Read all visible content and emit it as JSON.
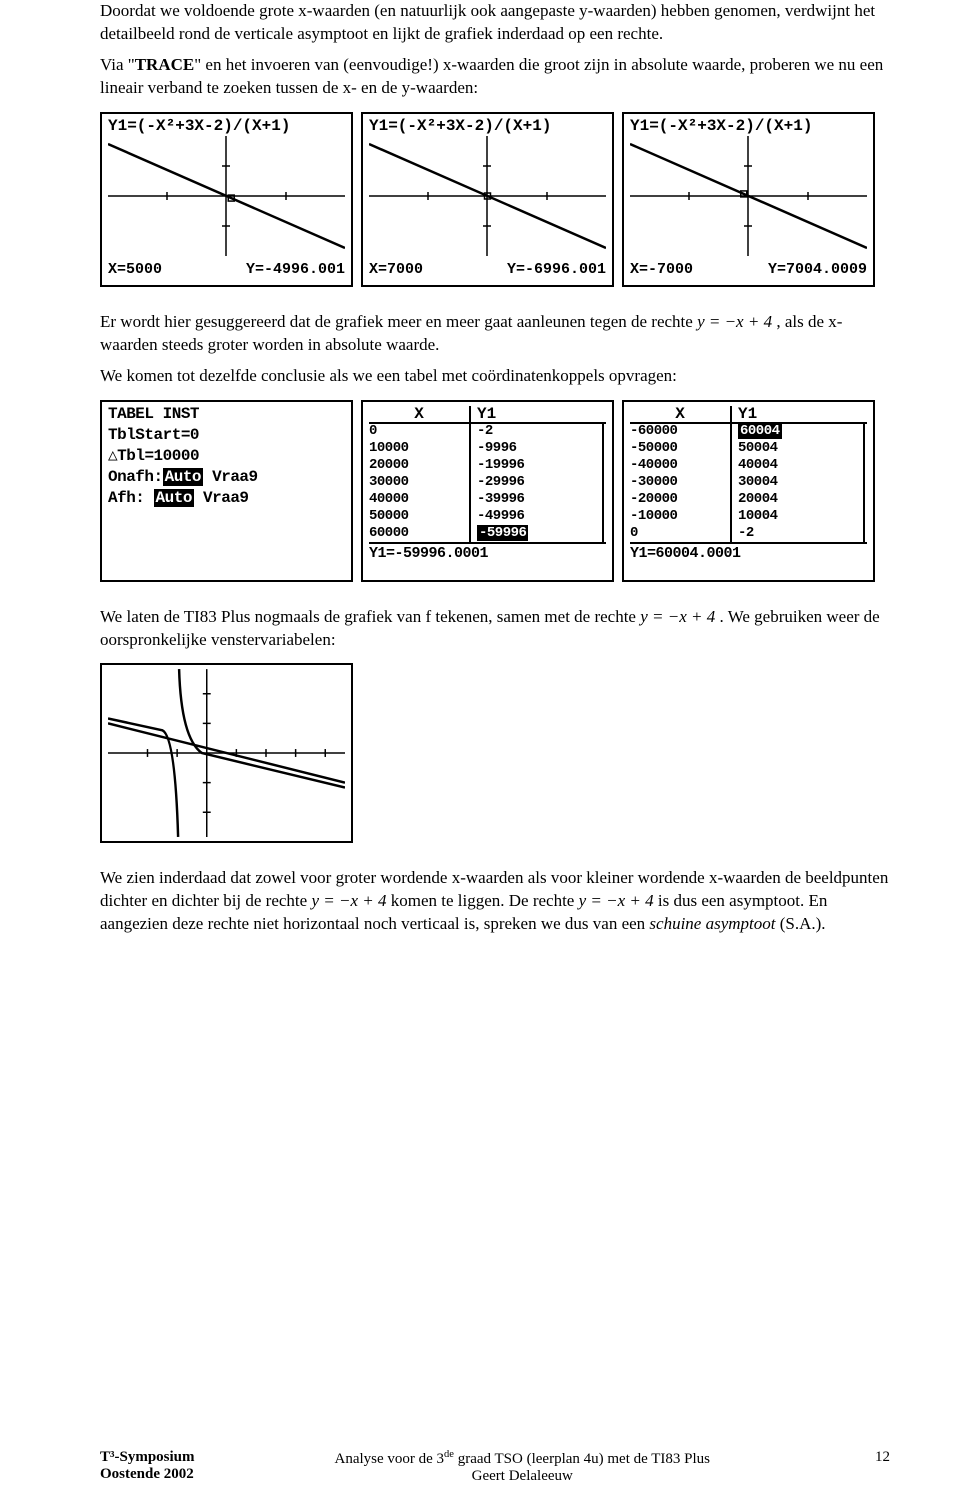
{
  "para1": "Doordat we voldoende grote x-waarden (en natuurlijk ook aangepaste y-waarden) hebben genomen, verdwijnt het detailbeeld rond de verticale asymptoot en lijkt de grafiek inderdaad op een rechte.",
  "para2a": "Via \"",
  "para2b": "TRACE",
  "para2c": "\" en het invoeren van (eenvoudige!) x-waarden die groot zijn in absolute waarde, proberen we nu een lineair verband te zoeken tussen de x- en de y-waarden:",
  "calc_graph_formula": "Y1=(-X²+3X-2)/(X+1)",
  "graphs": [
    {
      "x": "X=5000",
      "y": "Y=-4996.001",
      "trace_x": 0.52
    },
    {
      "x": "X=7000",
      "y": "Y=-6996.001",
      "trace_x": 0.5
    },
    {
      "x": "X=-7000",
      "y": "Y=7004.0009",
      "trace_x": 0.48
    }
  ],
  "para3a": "Er wordt hier gesuggereerd dat de grafiek meer en meer gaat aanleunen tegen de rechte ",
  "para3b": "y = −x + 4",
  "para3c": " , als de x-waarden steeds groter worden in absolute waarde.",
  "para4": "We komen tot dezelfde conclusie als we een tabel met coördinatenkoppels opvragen:",
  "tabelinst": {
    "l0": "TABEL INST",
    "l1": " TblStart=0",
    "l2": "△Tbl=10000",
    "l3a": "Onafh:",
    "l3b": "Auto",
    "l3c": " Vraa9",
    "l4a": "Afh:  ",
    "l4b": "Auto",
    "l4c": " Vraa9"
  },
  "table1": {
    "c1": "X",
    "c2": "Y1",
    "x": [
      "0",
      "10000",
      "20000",
      "30000",
      "40000",
      "50000",
      "60000"
    ],
    "y": [
      "-2",
      "-9996",
      "-19996",
      "-29996",
      "-39996",
      "-49996",
      "-59996"
    ],
    "foot": "Y1=-59996.0001",
    "inv_row": 6
  },
  "table2": {
    "c1": "X",
    "c2": "Y1",
    "x": [
      "-60000",
      "-50000",
      "-40000",
      "-30000",
      "-20000",
      "-10000",
      "0"
    ],
    "y": [
      "60004",
      "50004",
      "40004",
      "30004",
      "20004",
      "10004",
      "-2"
    ],
    "foot": "Y1=60004.0001",
    "inv_row": 0
  },
  "para5a": "We laten de TI83 Plus nogmaals de grafiek van f tekenen, samen met de rechte ",
  "para5b": "y = −x + 4",
  "para5c": " . We gebruiken weer de oorspronkelijke venstervariabelen:",
  "para6a": "We zien inderdaad dat zowel voor groter wordende x-waarden als voor kleiner wordende x-waarden de beeldpunten dichter en dichter bij de rechte ",
  "para6b": "y = −x + 4",
  "para6c": " komen te liggen. De rechte ",
  "para6d": "y = −x + 4",
  "para6e": " is dus een asymptoot. En aangezien deze rechte niet horizontaal noch verticaal is, spreken we dus van een ",
  "para6f": "schuine asymptoot",
  "para6g": " (S.A.).",
  "footer": {
    "left1": "T³-Symposium",
    "left2": "Oostende 2002",
    "mid1a": "Analyse voor de 3",
    "mid1b": "de",
    "mid1c": " graad TSO (leerplan 4u) met de TI83 Plus",
    "mid2": "Geert Delaleeuw",
    "page": "12"
  },
  "colors": {
    "text": "#000000",
    "bg": "#ffffff",
    "border": "#000000"
  }
}
